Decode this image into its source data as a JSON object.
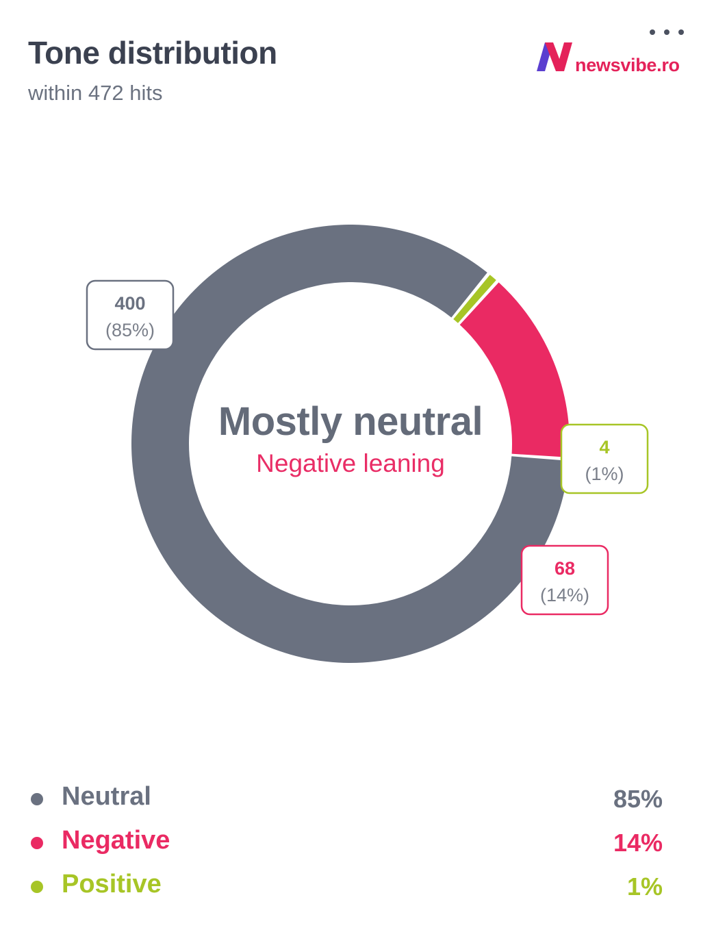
{
  "header": {
    "title": "Tone distribution",
    "subtitle": "within 472 hits",
    "brand_name": "newsvibe.ro",
    "menu_icon": "more-horizontal-icon"
  },
  "center": {
    "main": "Mostly neutral",
    "sub": "Negative leaning"
  },
  "colors": {
    "neutral": "#6a7180",
    "negative": "#ea2a63",
    "positive": "#a7c526",
    "brand": "#e4225a",
    "brand_accent": "#5b3fd0"
  },
  "chart_data": {
    "type": "pie",
    "variant": "donut",
    "total": 472,
    "slices": [
      {
        "name": "Neutral",
        "value": 400,
        "count_label": "400",
        "percent_label": "(85%)",
        "color": "#6a7180"
      },
      {
        "name": "Positive",
        "value": 4,
        "count_label": "4",
        "percent_label": "(1%)",
        "color": "#a7c526"
      },
      {
        "name": "Negative",
        "value": 68,
        "count_label": "68",
        "percent_label": "(14%)",
        "color": "#ea2a63"
      }
    ]
  },
  "legend": [
    {
      "label": "Neutral",
      "value": "85%",
      "color": "#6a7180"
    },
    {
      "label": "Negative",
      "value": "14%",
      "color": "#ea2a63"
    },
    {
      "label": "Positive",
      "value": "1%",
      "color": "#a7c526"
    }
  ]
}
